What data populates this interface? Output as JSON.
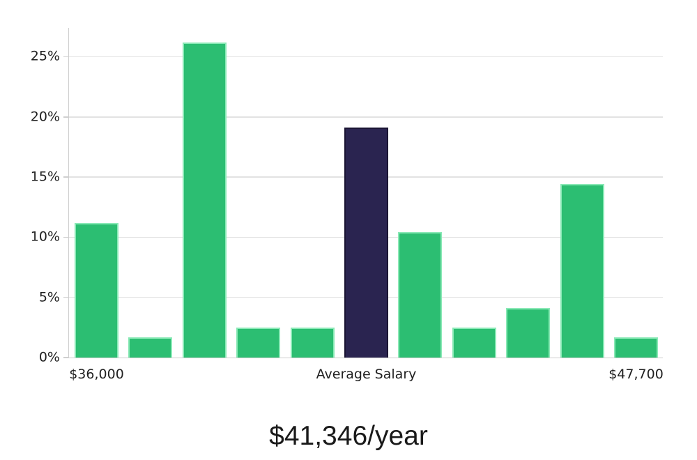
{
  "chart_data": {
    "type": "bar",
    "title": "",
    "caption": "$41,346/year",
    "values": [
      11.2,
      1.7,
      26.2,
      2.5,
      2.5,
      19.1,
      10.4,
      2.5,
      4.1,
      14.4,
      1.7
    ],
    "highlight_index": 5,
    "x_tick_labels": [
      {
        "bar_index": 0,
        "label": "$36,000"
      },
      {
        "bar_index": 5,
        "label": "Average Salary"
      },
      {
        "bar_index": 10,
        "label": "$47,700"
      }
    ],
    "y_ticks": [
      0,
      5,
      10,
      15,
      20,
      25
    ],
    "y_tick_suffix": "%",
    "ylim": [
      0,
      27.4
    ],
    "grid": true,
    "legend_position": "none",
    "xlabel": "",
    "ylabel": "",
    "colors": {
      "bar_fill": "#2CBE72",
      "bar_edge": "#8AE9B6",
      "highlight_fill": "#2A2450",
      "highlight_edge": "#1A1433",
      "gridline": "#E2E2E2",
      "axis": "#CFCFCF",
      "tick_text": "#1F1F1F",
      "caption_text": "#1A1A1A",
      "background": "#FFFFFF"
    }
  }
}
